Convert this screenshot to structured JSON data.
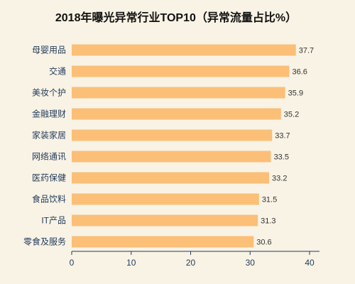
{
  "chart_data": {
    "type": "bar",
    "orientation": "horizontal",
    "title": "2018年曝光异常行业TOP10（异常流量占比%）",
    "categories": [
      "母婴用品",
      "交通",
      "美妆个护",
      "金融理财",
      "家装家居",
      "网络通讯",
      "医药保健",
      "食品饮料",
      "IT产品",
      "零食及服务"
    ],
    "values": [
      37.7,
      36.6,
      35.9,
      35.2,
      33.7,
      33.5,
      33.2,
      31.5,
      31.3,
      30.6
    ],
    "xlim": [
      0,
      40
    ],
    "xticks": [
      0,
      10,
      20,
      30,
      40
    ],
    "xlabel": "",
    "ylabel": "",
    "grid": false,
    "colors": {
      "bar": "#fbbf78",
      "axis": "#1f3a5a",
      "background": "#f9f3e5"
    }
  }
}
